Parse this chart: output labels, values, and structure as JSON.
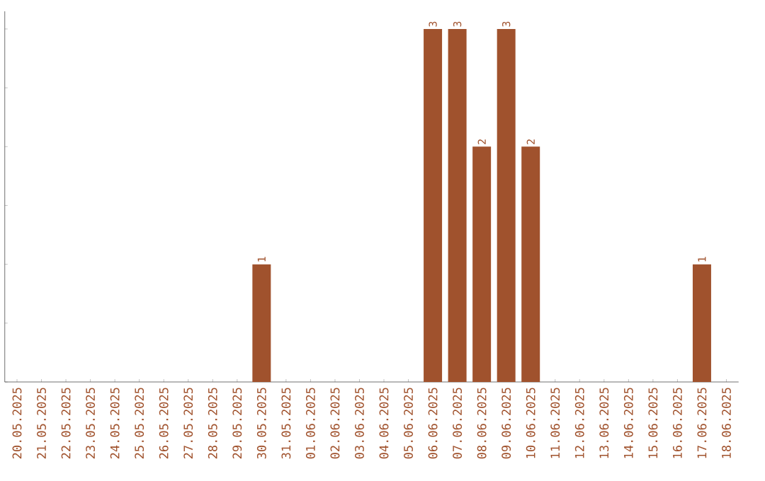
{
  "chart_data": {
    "type": "bar",
    "categories": [
      "20.05.2025",
      "21.05.2025",
      "22.05.2025",
      "23.05.2025",
      "24.05.2025",
      "25.05.2025",
      "26.05.2025",
      "27.05.2025",
      "28.05.2025",
      "29.05.2025",
      "30.05.2025",
      "31.05.2025",
      "01.06.2025",
      "02.06.2025",
      "03.06.2025",
      "04.06.2025",
      "05.06.2025",
      "06.06.2025",
      "07.06.2025",
      "08.06.2025",
      "09.06.2025",
      "10.06.2025",
      "11.06.2025",
      "12.06.2025",
      "13.06.2025",
      "14.06.2025",
      "15.06.2025",
      "16.06.2025",
      "17.06.2025",
      "18.06.2025"
    ],
    "values": [
      0,
      0,
      0,
      0,
      0,
      0,
      0,
      0,
      0,
      0,
      1,
      0,
      0,
      0,
      0,
      0,
      0,
      3,
      3,
      2,
      3,
      2,
      0,
      0,
      0,
      0,
      0,
      0,
      1,
      0
    ],
    "value_labels": [
      null,
      null,
      null,
      null,
      null,
      null,
      null,
      null,
      null,
      null,
      "1",
      null,
      null,
      null,
      null,
      null,
      null,
      "3",
      "3",
      "2",
      "3",
      "2",
      null,
      null,
      null,
      null,
      null,
      null,
      "1",
      null
    ],
    "color": "#a0522d",
    "tick_labels": "x",
    "relative": false
  }
}
